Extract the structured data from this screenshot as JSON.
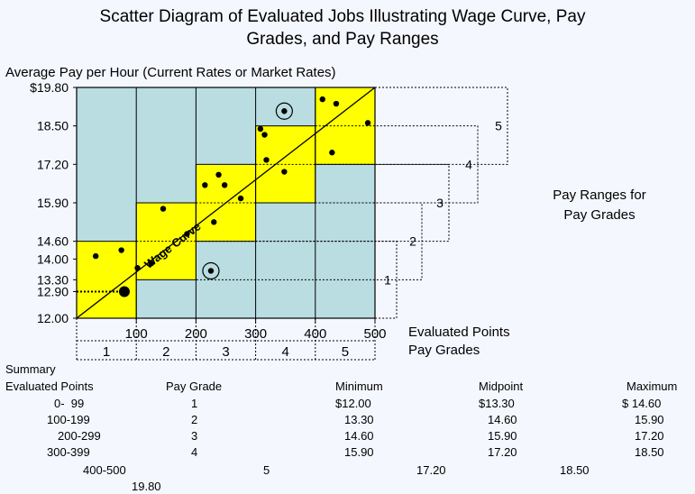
{
  "chart_data": {
    "type": "scatter",
    "title_line1": "Scatter Diagram of Evaluated Jobs Illustrating Wage Curve, Pay",
    "title_line2": "Grades, and Pay Ranges",
    "ylabel": "Average Pay per Hour (Current Rates or Market Rates)",
    "xlabel": "Evaluated Points",
    "grades_label": "Pay Grades",
    "side_label_line1": "Pay Ranges for",
    "side_label_line2": "Pay Grades",
    "wage_curve_label": "Wage Curve",
    "xlim": [
      0,
      500
    ],
    "ylim": [
      12.0,
      19.8
    ],
    "x_ticks": [
      "100",
      "200",
      "300",
      "400",
      "500"
    ],
    "y_ticks": [
      {
        "value": 19.8,
        "label": "$19.80"
      },
      {
        "value": 18.5,
        "label": "18.50"
      },
      {
        "value": 17.2,
        "label": "17.20"
      },
      {
        "value": 15.9,
        "label": "15.90"
      },
      {
        "value": 14.6,
        "label": "14.60"
      },
      {
        "value": 14.0,
        "label": "14.00"
      },
      {
        "value": 13.3,
        "label": "13.30"
      },
      {
        "value": 12.9,
        "label": "12.90"
      },
      {
        "value": 12.0,
        "label": "12.00"
      }
    ],
    "pay_grades": [
      {
        "grade": "1",
        "x_min": 0,
        "x_max": 100,
        "min": 12.0,
        "max": 14.6
      },
      {
        "grade": "2",
        "x_min": 100,
        "x_max": 200,
        "min": 13.3,
        "max": 15.9
      },
      {
        "grade": "3",
        "x_min": 200,
        "x_max": 300,
        "min": 14.6,
        "max": 17.2
      },
      {
        "grade": "4",
        "x_min": 300,
        "x_max": 400,
        "min": 15.9,
        "max": 18.5
      },
      {
        "grade": "5",
        "x_min": 400,
        "x_max": 500,
        "min": 17.2,
        "max": 19.8
      }
    ],
    "wage_curve": {
      "x": [
        0,
        500
      ],
      "y": [
        12.0,
        19.8
      ]
    },
    "points": [
      {
        "x": 32,
        "y": 14.1
      },
      {
        "x": 75,
        "y": 14.3
      },
      {
        "x": 102,
        "y": 13.7
      },
      {
        "x": 125,
        "y": 13.85
      },
      {
        "x": 145,
        "y": 15.7
      },
      {
        "x": 185,
        "y": 14.85
      },
      {
        "x": 215,
        "y": 16.5
      },
      {
        "x": 230,
        "y": 15.25
      },
      {
        "x": 238,
        "y": 16.85
      },
      {
        "x": 248,
        "y": 16.5
      },
      {
        "x": 275,
        "y": 16.05
      },
      {
        "x": 308,
        "y": 18.4
      },
      {
        "x": 315,
        "y": 18.2
      },
      {
        "x": 318,
        "y": 17.35
      },
      {
        "x": 348,
        "y": 16.95
      },
      {
        "x": 412,
        "y": 19.4
      },
      {
        "x": 428,
        "y": 17.6
      },
      {
        "x": 435,
        "y": 19.25
      },
      {
        "x": 488,
        "y": 18.6
      }
    ],
    "red_circle_points": [
      {
        "x": 348,
        "y": 19.0
      },
      {
        "x": 225,
        "y": 13.6
      }
    ],
    "highlight_point": {
      "x": 80,
      "y": 12.9
    }
  },
  "summary": {
    "title": "Summary",
    "headers": {
      "points": "Evaluated Points",
      "grade": "Pay Grade",
      "minimum": "Minimum",
      "midpoint": "Midpoint",
      "maximum": "Maximum"
    },
    "rows": [
      {
        "points": "0-  99",
        "grade": "1",
        "minimum": "$12.00",
        "midpoint": "$13.30",
        "maximum": "$ 14.60"
      },
      {
        "points": "100-199",
        "grade": "2",
        "minimum": "13.30",
        "midpoint": "14.60",
        "maximum": "15.90"
      },
      {
        "points": "200-299",
        "grade": "3",
        "minimum": "14.60",
        "midpoint": "15.90",
        "maximum": "17.20"
      },
      {
        "points": "300-399",
        "grade": "4",
        "minimum": "15.90",
        "midpoint": "17.20",
        "maximum": "18.50"
      },
      {
        "points": "400-500",
        "grade": "5",
        "minimum": "17.20",
        "midpoint": "18.50",
        "maximum": "19.80"
      }
    ]
  }
}
